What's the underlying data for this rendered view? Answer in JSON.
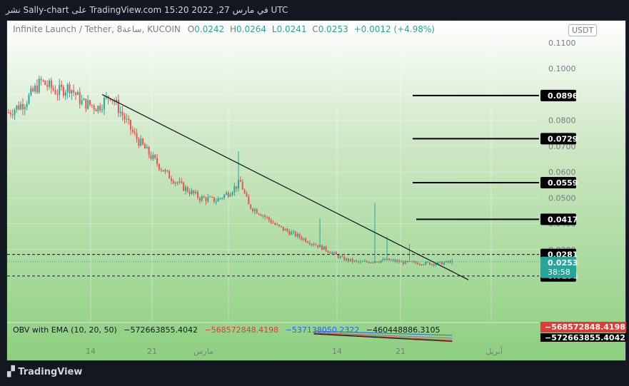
{
  "header": {
    "publish_text": "نشر Sally-chart على TradingView.com 15:20 2022 ,27 في مارس UTC"
  },
  "legend": {
    "symbol": "Infinite Launch / Tether, 8ساعة, KUCOIN",
    "open_label": "O",
    "open": "0.0242",
    "high_label": "H",
    "high": "0.0264",
    "low_label": "L",
    "low": "0.0241",
    "close_label": "C",
    "close": "0.0253",
    "change": "+0.0012 (+4.98%)"
  },
  "currency_badge": "USDT",
  "obv_legend": {
    "title": "OBV with EMA (10, 20, 50)",
    "v1": "−572663855.4042",
    "v2": "−568572848.4198",
    "v3": "−537138050.2322",
    "v4": "−460448886.3105"
  },
  "price_scale": {
    "ticks": [
      "0.1100",
      "0.1000",
      "0.0900",
      "0.0800",
      "0.0700",
      "0.0600",
      "0.0500",
      "0.0400",
      "0.0300",
      "0.0200"
    ],
    "tag_last_price": "0.0253",
    "tag_countdown": "38:58",
    "tag_obv_red": "−568572848.4198",
    "tag_obv_black": "−572663855.4042"
  },
  "time_axis": {
    "labels": [
      "14",
      "21",
      "مارس",
      "14",
      "21",
      "أبريل"
    ]
  },
  "footer": {
    "brand": "TradingView"
  },
  "colors": {
    "up": "#26a69a",
    "down": "#ef5350",
    "background": "#131722",
    "ema_red": "#e53935",
    "ema_blue": "#2962ff"
  },
  "chart_data": {
    "type": "candlestick",
    "ylim": [
      0.018,
      0.112
    ],
    "levels": [
      {
        "label": "0.0896",
        "value": 0.0896,
        "style": "solid"
      },
      {
        "label": "0.0729",
        "value": 0.0729,
        "style": "solid"
      },
      {
        "label": "0.0559",
        "value": 0.0559,
        "style": "solid"
      },
      {
        "label": "0.0417",
        "value": 0.0417,
        "style": "solid"
      },
      {
        "label": "0.0281",
        "value": 0.0281,
        "style": "dashed"
      },
      {
        "label": "0.0198",
        "value": 0.0198,
        "style": "dashed"
      }
    ],
    "trendline": {
      "from": {
        "bar": 46,
        "price": 0.09
      },
      "to": {
        "bar": 226,
        "price": 0.0183
      }
    },
    "knots": [
      [
        0,
        0.083
      ],
      [
        8,
        0.087
      ],
      [
        16,
        0.095
      ],
      [
        24,
        0.091
      ],
      [
        30,
        0.093
      ],
      [
        36,
        0.087
      ],
      [
        44,
        0.085
      ],
      [
        50,
        0.09
      ],
      [
        56,
        0.082
      ],
      [
        62,
        0.074
      ],
      [
        70,
        0.066
      ],
      [
        78,
        0.059
      ],
      [
        86,
        0.054
      ],
      [
        94,
        0.05
      ],
      [
        102,
        0.049
      ],
      [
        108,
        0.052
      ],
      [
        114,
        0.056
      ],
      [
        118,
        0.047
      ],
      [
        124,
        0.044
      ],
      [
        132,
        0.039
      ],
      [
        140,
        0.036
      ],
      [
        148,
        0.033
      ],
      [
        156,
        0.03
      ],
      [
        164,
        0.0265
      ],
      [
        172,
        0.025
      ],
      [
        180,
        0.0255
      ],
      [
        186,
        0.026
      ],
      [
        194,
        0.025
      ],
      [
        202,
        0.0248
      ],
      [
        210,
        0.0245
      ],
      [
        218,
        0.0253
      ]
    ],
    "spikes": [
      {
        "bar": 113,
        "high": 0.068
      },
      {
        "bar": 153,
        "high": 0.042
      },
      {
        "bar": 180,
        "high": 0.048
      },
      {
        "bar": 186,
        "high": 0.035
      },
      {
        "bar": 197,
        "high": 0.032
      }
    ],
    "bar_count": 219
  }
}
